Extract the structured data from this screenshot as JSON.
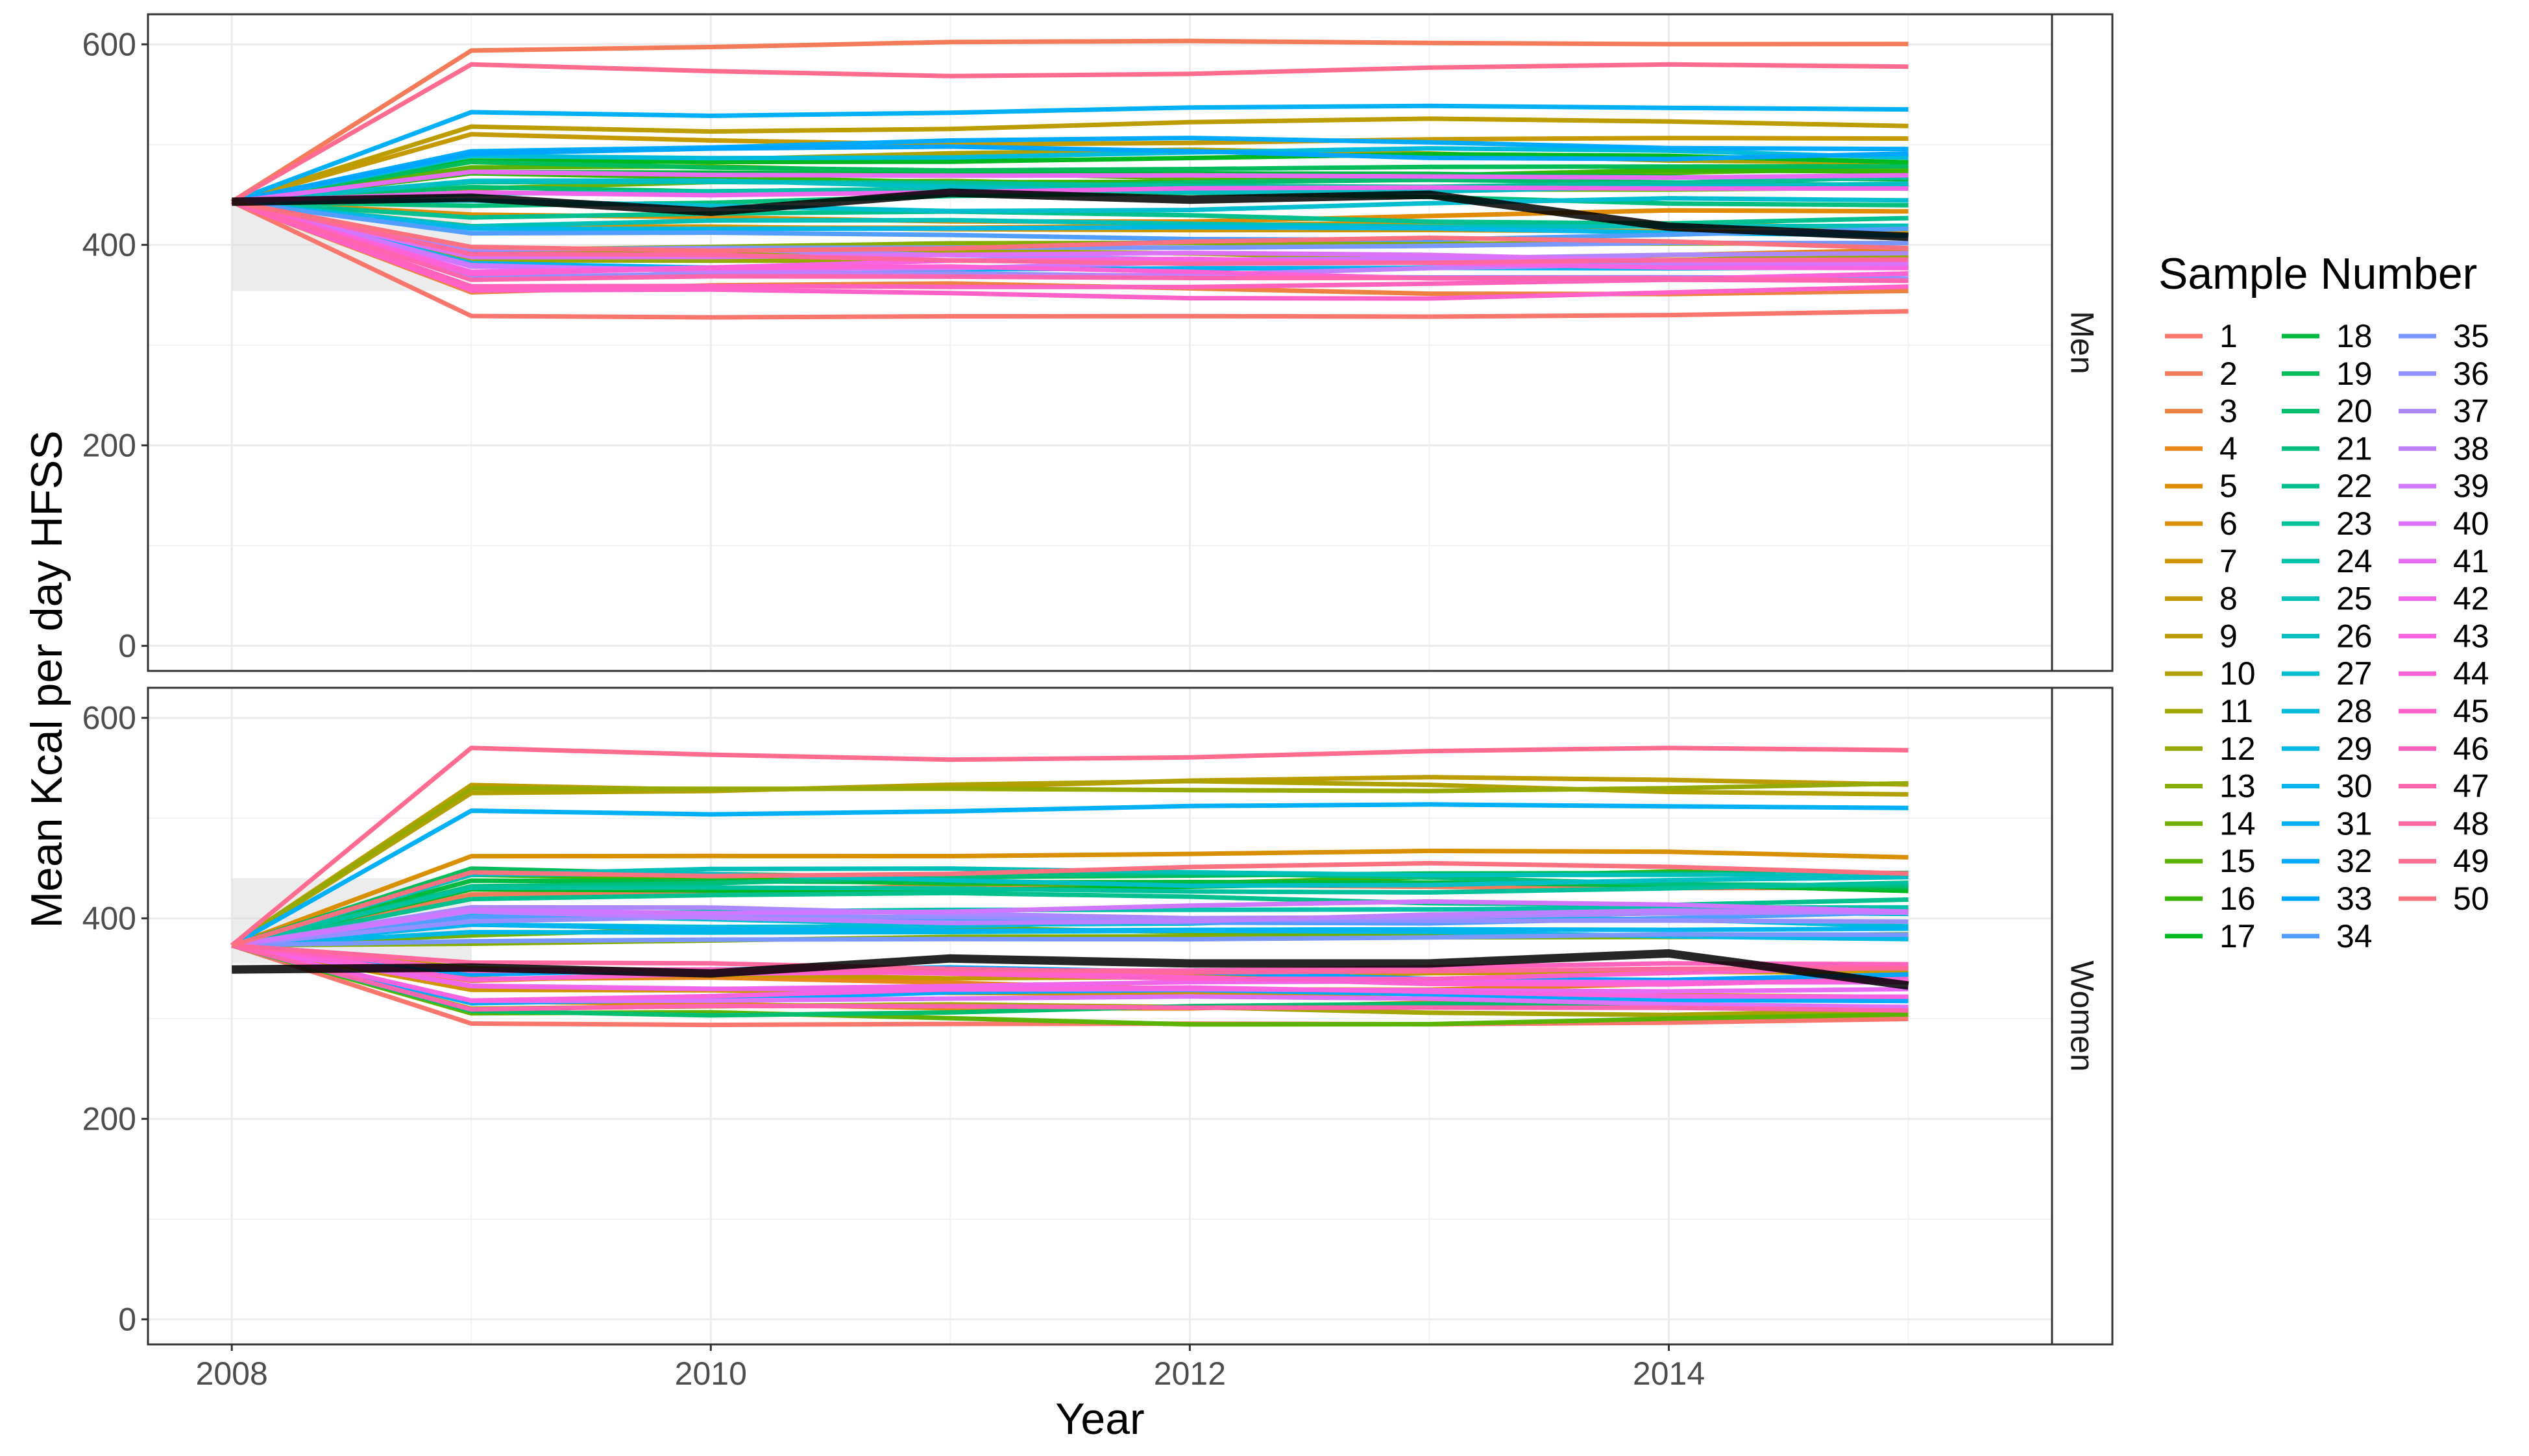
{
  "chart_data": {
    "type": "line",
    "xlabel": "Year",
    "ylabel": "Mean Kcal per day HFSS",
    "x": [
      2008,
      2009,
      2010,
      2011,
      2012,
      2013,
      2014,
      2015
    ],
    "x_ticks": [
      2008,
      2010,
      2012,
      2014
    ],
    "y_ticks": [
      0,
      200,
      400,
      600
    ],
    "ylim": [
      -25,
      630
    ],
    "xlim": [
      2007.65,
      2015.6
    ],
    "grid": true,
    "legend": {
      "title": "Sample Number",
      "placement": "right",
      "entries": [
        "1",
        "2",
        "3",
        "4",
        "5",
        "6",
        "7",
        "8",
        "9",
        "10",
        "11",
        "12",
        "13",
        "14",
        "15",
        "16",
        "17",
        "18",
        "19",
        "20",
        "21",
        "22",
        "23",
        "24",
        "25",
        "26",
        "27",
        "28",
        "29",
        "30",
        "31",
        "32",
        "33",
        "34",
        "35",
        "36",
        "37",
        "38",
        "39",
        "40",
        "41",
        "42",
        "43",
        "44",
        "45",
        "46",
        "47",
        "48",
        "49",
        "50"
      ]
    },
    "panels": [
      {
        "strip_label": "Men",
        "start": 443,
        "observed": [
          443,
          447,
          433,
          452,
          445,
          450,
          418,
          408
        ],
        "band": [
          {
            "x": 2008,
            "low": 354,
            "high": 444
          },
          {
            "x": 2009,
            "low": 354,
            "high": 444
          }
        ],
        "sample_levels": [
          330,
          600,
          355,
          390,
          428,
          418,
          415,
          505,
          520,
          488,
          390,
          385,
          400,
          458,
          472,
          468,
          485,
          470,
          478,
          460,
          445,
          428,
          462,
          455,
          420,
          458,
          440,
          490,
          415,
          378,
          535,
          500,
          492,
          410,
          398,
          368,
          390,
          375,
          380,
          388,
          470,
          455,
          380,
          372,
          352,
          360,
          366,
          385,
          575,
          400
        ]
      },
      {
        "strip_label": "Women",
        "start": 373,
        "observed": [
          349,
          351,
          345,
          360,
          355,
          355,
          365,
          333
        ],
        "band": [
          {
            "x": 2008,
            "low": 355,
            "high": 440
          },
          {
            "x": 2009,
            "low": 355,
            "high": 440
          }
        ],
        "sample_levels": [
          296,
          430,
          340,
          335,
          315,
          463,
          325,
          345,
          535,
          530,
          310,
          530,
          380,
          385,
          300,
          440,
          430,
          435,
          445,
          310,
          438,
          420,
          430,
          408,
          445,
          438,
          400,
          395,
          385,
          390,
          510,
          322,
          345,
          400,
          380,
          398,
          405,
          402,
          410,
          318,
          330,
          335,
          325,
          340,
          345,
          350,
          310,
          350,
          565,
          448
        ]
      }
    ]
  }
}
